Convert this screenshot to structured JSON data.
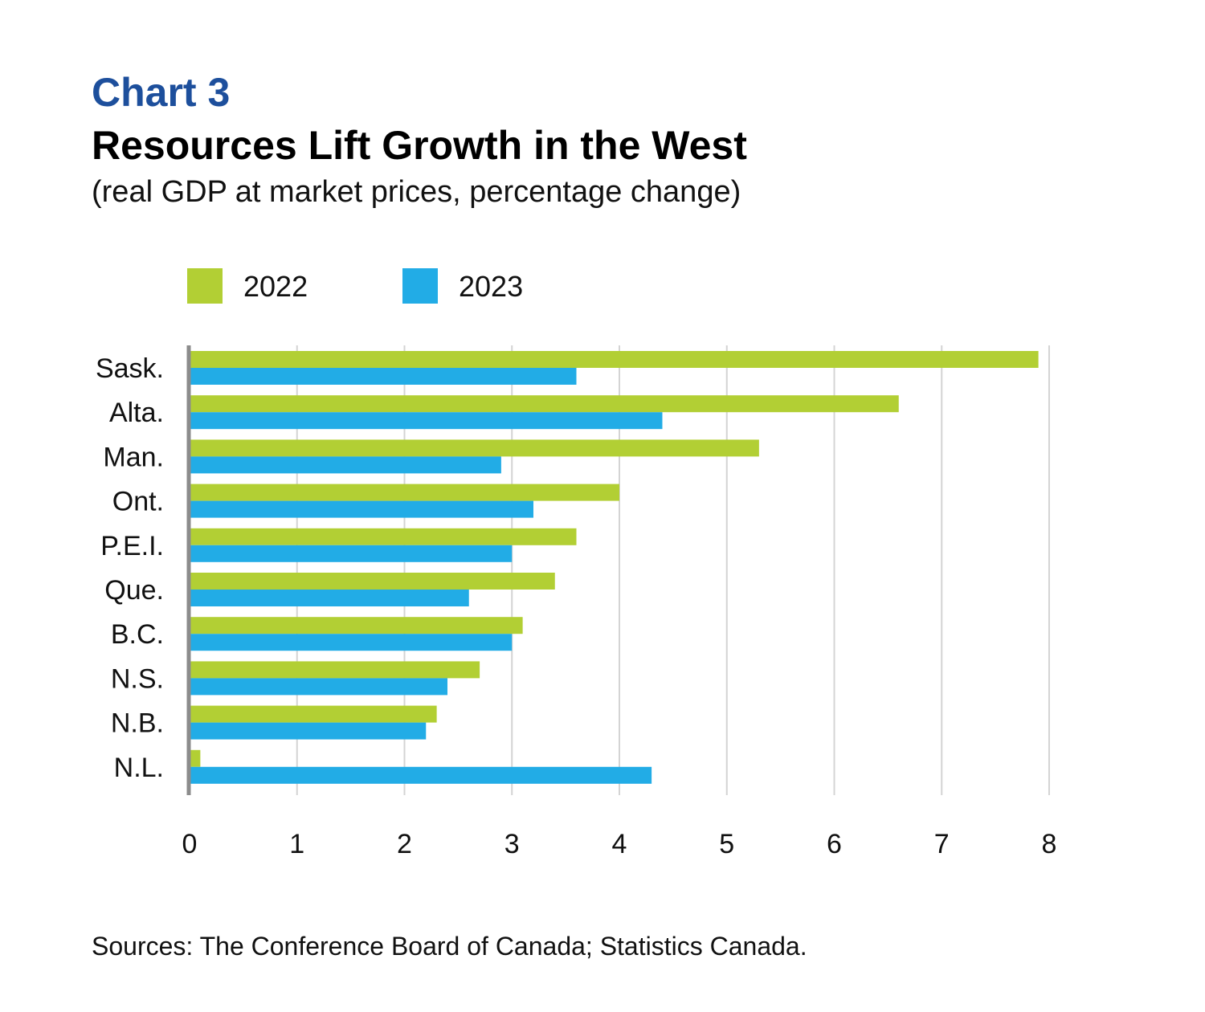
{
  "header": {
    "chart_label": "Chart 3",
    "title": "Resources Lift Growth in the West",
    "subtitle": "(real GDP at market prices, percentage change)"
  },
  "legend": {
    "items": [
      {
        "label": "2022",
        "color": "#b2cf34"
      },
      {
        "label": "2023",
        "color": "#22ace6"
      }
    ]
  },
  "chart_data": {
    "type": "bar",
    "orientation": "horizontal",
    "categories": [
      "Sask.",
      "Alta.",
      "Man.",
      "Ont.",
      "P.E.I.",
      "Que.",
      "B.C.",
      "N.S.",
      "N.B.",
      "N.L."
    ],
    "series": [
      {
        "name": "2022",
        "color": "#b2cf34",
        "values": [
          7.9,
          6.6,
          5.3,
          4.0,
          3.6,
          3.4,
          3.1,
          2.7,
          2.3,
          0.1
        ]
      },
      {
        "name": "2023",
        "color": "#22ace6",
        "values": [
          3.6,
          4.4,
          2.9,
          3.2,
          3.0,
          2.6,
          3.0,
          2.4,
          2.2,
          4.3
        ]
      }
    ],
    "xlim": [
      0,
      8
    ],
    "x_ticks": [
      "0",
      "1",
      "2",
      "3",
      "4",
      "5",
      "6",
      "7",
      "8"
    ],
    "grid": "vertical",
    "legend_position": "top-left"
  },
  "footer": {
    "source": "Sources: The Conference Board of Canada; Statistics Canada."
  }
}
